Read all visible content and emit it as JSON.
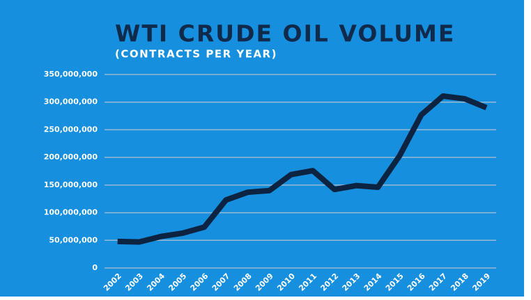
{
  "chart_data": {
    "type": "line",
    "title": "WTI CRUDE OIL VOLUME",
    "subtitle": "(CONTRACTS PER YEAR)",
    "x": [
      2002,
      2003,
      2004,
      2005,
      2006,
      2007,
      2008,
      2009,
      2010,
      2011,
      2012,
      2013,
      2014,
      2015,
      2016,
      2017,
      2018,
      2019
    ],
    "series": [
      {
        "name": "WTI crude oil volume",
        "color": "#0c2442",
        "values": [
          48000000,
          47000000,
          57000000,
          63000000,
          74000000,
          123000000,
          137000000,
          140000000,
          169000000,
          176000000,
          142000000,
          149000000,
          146000000,
          203000000,
          277000000,
          311000000,
          306000000,
          290000000
        ]
      }
    ],
    "xlim": [
      2001.4,
      2019.45
    ],
    "xticks": [
      2002,
      2003,
      2004,
      2005,
      2006,
      2007,
      2008,
      2009,
      2010,
      2011,
      2012,
      2013,
      2014,
      2015,
      2016,
      2017,
      2018,
      2019
    ],
    "ylim": [
      0,
      350000000
    ],
    "yticks": [
      0,
      {
        "value": 50000000,
        "label": "50,000,000"
      },
      {
        "value": 100000000,
        "label": "100,000,000"
      },
      {
        "value": 150000000,
        "label": "150,000,000"
      },
      {
        "value": 200000000,
        "label": "200,000,000"
      },
      {
        "value": 250000000,
        "label": "250,000,000"
      },
      {
        "value": 300000000,
        "label": "300,000,000"
      },
      {
        "value": 350000000,
        "label": "350,000,000"
      }
    ],
    "grid": true
  }
}
